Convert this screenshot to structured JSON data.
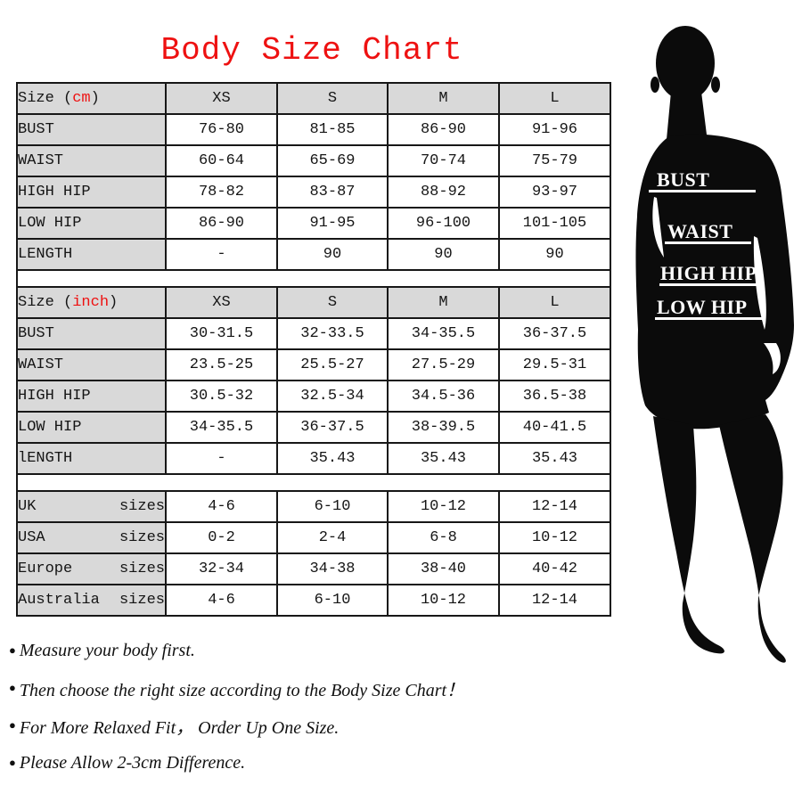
{
  "title": "Body Size Chart",
  "colors": {
    "accent_red": "#ee1111",
    "header_gray": "#d9d9d9",
    "silhouette_black": "#0b0b0b",
    "border_black": "#171717"
  },
  "size_tables": [
    {
      "name": "cm",
      "unit_label": {
        "pre": "Size (",
        "unit": "cm",
        "post": ")"
      },
      "columns": [
        "XS",
        "S",
        "M",
        "L"
      ],
      "rows": [
        {
          "label": "BUST",
          "values": [
            "76-80",
            "81-85",
            "86-90",
            "91-96"
          ]
        },
        {
          "label": "WAIST",
          "values": [
            "60-64",
            "65-69",
            "70-74",
            "75-79"
          ]
        },
        {
          "label": "HIGH HIP",
          "values": [
            "78-82",
            "83-87",
            "88-92",
            "93-97"
          ]
        },
        {
          "label": "LOW HIP",
          "values": [
            "86-90",
            "91-95",
            "96-100",
            "101-105"
          ]
        },
        {
          "label": "LENGTH",
          "values": [
            "-",
            "90",
            "90",
            "90"
          ]
        }
      ],
      "trailing_empty_row": true
    },
    {
      "name": "inch",
      "unit_label": {
        "pre": "Size (",
        "unit": "inch",
        "post": ")"
      },
      "columns": [
        "XS",
        "S",
        "M",
        "L"
      ],
      "rows": [
        {
          "label": "BUST",
          "values": [
            "30-31.5",
            "32-33.5",
            "34-35.5",
            "36-37.5"
          ]
        },
        {
          "label": "WAIST",
          "values": [
            "23.5-25",
            "25.5-27",
            "27.5-29",
            "29.5-31"
          ]
        },
        {
          "label": "HIGH HIP",
          "values": [
            "30.5-32",
            "32.5-34",
            "34.5-36",
            "36.5-38"
          ]
        },
        {
          "label": "LOW HIP",
          "values": [
            "34-35.5",
            "36-37.5",
            "38-39.5",
            "40-41.5"
          ]
        },
        {
          "label": "lENGTH",
          "values": [
            "-",
            "35.43",
            "35.43",
            "35.43"
          ]
        }
      ],
      "trailing_empty_row": true
    },
    {
      "name": "international",
      "rows": [
        {
          "label": "UK",
          "label_suffix": "sizes",
          "values": [
            "4-6",
            "6-10",
            "10-12",
            "12-14"
          ]
        },
        {
          "label": "USA",
          "label_suffix": "sizes",
          "values": [
            "0-2",
            "2-4",
            "6-8",
            "10-12"
          ]
        },
        {
          "label": "Europe",
          "label_suffix": "sizes",
          "values": [
            "32-34",
            "34-38",
            "38-40",
            "40-42"
          ]
        },
        {
          "label": "Australia",
          "label_suffix": "sizes",
          "values": [
            "4-6",
            "6-10",
            "10-12",
            "12-14"
          ]
        }
      ],
      "trailing_empty_row": false
    }
  ],
  "figure": {
    "labels": [
      "BUST",
      "WAIST",
      "HIGH HIP",
      "LOW HIP"
    ]
  },
  "notes": [
    "Measure your body first.",
    "Then choose the right size according to the Body Size Chart！",
    "For More Relaxed Fit， Order Up One Size.",
    "Please Allow 2-3cm Difference."
  ]
}
